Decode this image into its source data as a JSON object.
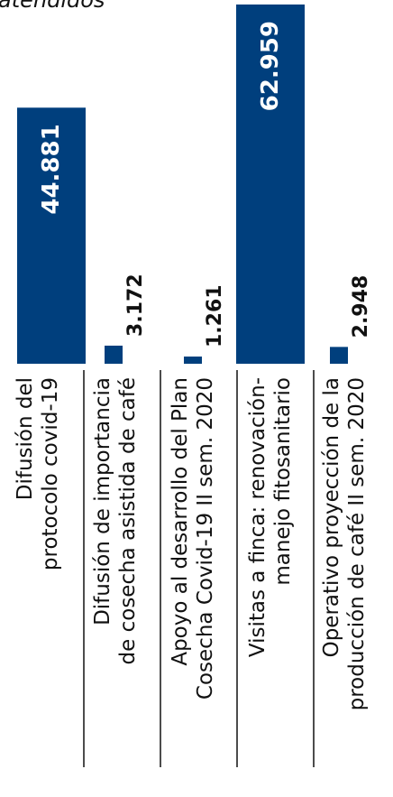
{
  "chart_data": {
    "type": "bar",
    "orientation": "horizontal",
    "title": "atendidos",
    "categories": [
      [
        "Difusión del",
        "protocolo covid-19"
      ],
      [
        "Difusión de importancia",
        "de cosecha asistida de café"
      ],
      [
        "Apoyo al desarrollo del Plan",
        "Cosecha Covid-19 II sem. 2020"
      ],
      [
        "Visitas a finca: renovación-",
        "manejo fitosanitario"
      ],
      [
        "Operativo proyección de la",
        "producción de café II sem. 2020"
      ]
    ],
    "values": [
      44881,
      3172,
      1261,
      62959,
      2948
    ],
    "value_labels": [
      "44.881",
      "3.172",
      "1.261",
      "62.959",
      "2.948"
    ],
    "bar_color": "#003f7d",
    "value_label_inside_color": "#ffffff",
    "value_label_outside_color": "#111111",
    "axis_line_color": "#111111",
    "grid": false,
    "legend": "none"
  }
}
